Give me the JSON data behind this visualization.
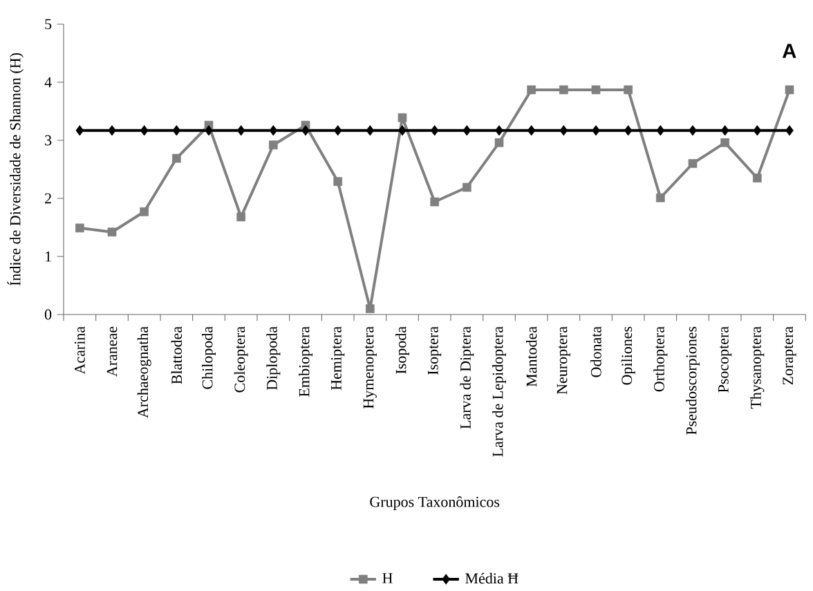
{
  "chart_data": {
    "type": "line",
    "xlabel": "Grupos Taxonômicos",
    "ylabel": "Índice de Diversidade de Shannon (H)",
    "categories": [
      "Acarina",
      "Araneae",
      "Archaeognatha",
      "Blattodea",
      "Chilopoda",
      "Coleoptera",
      "Diplopoda",
      "Embioptera",
      "Hemiptera",
      "Hymenoptera",
      "Isopoda",
      "Isoptera",
      "Larva de Diptera",
      "Larva de Lepidoptera",
      "Mantodea",
      "Neuroptera",
      "Odonata",
      "Opiliones",
      "Orthoptera",
      "Pseudoscorpiones",
      "Psocoptera",
      "Thysanoptera",
      "Zoraptera"
    ],
    "series": [
      {
        "name": "H",
        "color": "#808080",
        "marker": "square",
        "values": [
          1.49,
          1.42,
          1.77,
          2.69,
          3.26,
          1.68,
          2.92,
          3.26,
          2.29,
          0.1,
          3.39,
          1.94,
          2.19,
          2.96,
          3.87,
          3.87,
          3.87,
          3.87,
          2.01,
          2.6,
          2.96,
          2.35,
          3.87
        ]
      },
      {
        "name": "Média Ħ",
        "color": "#000000",
        "marker": "diamond",
        "values": [
          3.17,
          3.17,
          3.17,
          3.17,
          3.17,
          3.17,
          3.17,
          3.17,
          3.17,
          3.17,
          3.17,
          3.17,
          3.17,
          3.17,
          3.17,
          3.17,
          3.17,
          3.17,
          3.17,
          3.17,
          3.17,
          3.17,
          3.17
        ]
      }
    ],
    "ylim": [
      0,
      5
    ],
    "yticks": [
      0,
      1,
      2,
      3,
      4,
      5
    ],
    "grid": false,
    "legend": "bottom",
    "annotations": [
      "A"
    ]
  }
}
